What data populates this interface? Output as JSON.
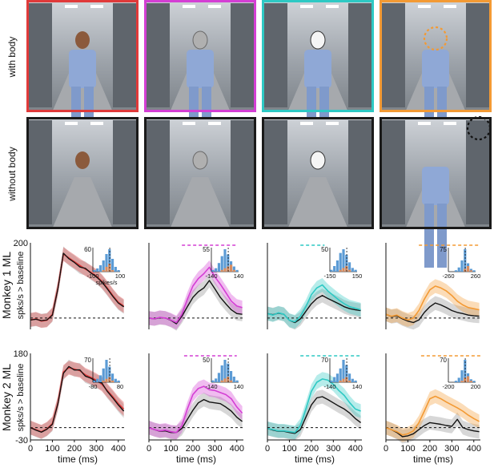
{
  "photo_panel": {
    "row_labels": [
      "with body",
      "without body"
    ],
    "frame_colors": [
      "#e03a3a",
      "#d43fd4",
      "#2ec9c4",
      "#f39a34"
    ],
    "bottom_frame_color": "#1a1a1a"
  },
  "colors": {
    "condition_1": "#e03a3a",
    "condition_2": "#d43fd4",
    "condition_3": "#2ec9c4",
    "condition_4": "#f39a34",
    "without_body": "#111111",
    "histogram_bars": "#5b9bd5",
    "histogram_highlight": "#d98c5f"
  },
  "row_titles": [
    "Monkey 1 ML",
    "Monkey 2 ML"
  ],
  "ylabel": "spks/s > baseline",
  "xlabel": "time (ms)",
  "x_ticks": [
    "0",
    "100",
    "200",
    "300",
    "400"
  ],
  "inset_unit": "spikes/s",
  "chart_data": [
    {
      "type": "line",
      "row": 0,
      "col": 0,
      "color_key": "condition_1",
      "x": [
        0,
        25,
        50,
        75,
        100,
        125,
        150,
        175,
        200,
        225,
        250,
        275,
        300,
        325,
        350,
        375,
        400,
        425
      ],
      "ylim": [
        -30,
        200
      ],
      "xlim": [
        0,
        430
      ],
      "y_tick_labels": [
        "200"
      ],
      "series": [
        {
          "values": [
            -5,
            -2,
            -8,
            -6,
            10,
            80,
            170,
            160,
            150,
            140,
            130,
            122,
            112,
            98,
            80,
            60,
            42,
            32
          ]
        },
        {
          "values": [
            -5,
            -3,
            -7,
            -5,
            8,
            78,
            172,
            158,
            148,
            136,
            132,
            120,
            110,
            96,
            78,
            58,
            40,
            30
          ]
        }
      ],
      "significance_bar": null,
      "inset": {
        "ticks": [
          "-100",
          "100"
        ],
        "ymax_label": "60",
        "counts": [
          1,
          2,
          4,
          7,
          11,
          14,
          8,
          3,
          1
        ],
        "highlight": [
          0,
          0,
          0,
          1,
          3,
          5,
          1,
          0,
          0
        ]
      }
    },
    {
      "type": "line",
      "row": 0,
      "col": 1,
      "color_key": "condition_2",
      "x": [
        0,
        25,
        50,
        75,
        100,
        125,
        150,
        175,
        200,
        225,
        250,
        275,
        300,
        325,
        350,
        375,
        400,
        425
      ],
      "ylim": [
        -30,
        200
      ],
      "xlim": [
        0,
        430
      ],
      "y_tick_labels": [],
      "series": [
        {
          "values": [
            0,
            -2,
            2,
            0,
            -5,
            -12,
            10,
            50,
            85,
            105,
            118,
            135,
            110,
            90,
            68,
            45,
            32,
            28
          ]
        },
        {
          "values": [
            0,
            -2,
            1,
            0,
            -6,
            -15,
            5,
            30,
            55,
            70,
            80,
            100,
            78,
            55,
            38,
            22,
            12,
            10
          ]
        }
      ],
      "significance_bar": [
        150,
        400
      ],
      "inset": {
        "ticks": [
          "-140",
          "140"
        ],
        "ymax_label": "55",
        "counts": [
          1,
          2,
          5,
          9,
          13,
          10,
          6,
          3,
          1
        ],
        "highlight": [
          0,
          0,
          0,
          1,
          2,
          3,
          4,
          1,
          0
        ]
      }
    },
    {
      "type": "line",
      "row": 0,
      "col": 2,
      "color_key": "condition_3",
      "x": [
        0,
        25,
        50,
        75,
        100,
        125,
        150,
        175,
        200,
        225,
        250,
        275,
        300,
        325,
        350,
        375,
        400,
        425
      ],
      "ylim": [
        -30,
        200
      ],
      "xlim": [
        0,
        430
      ],
      "y_tick_labels": [],
      "series": [
        {
          "values": [
            12,
            8,
            14,
            10,
            -6,
            -10,
            5,
            30,
            62,
            80,
            88,
            72,
            60,
            48,
            38,
            30,
            26,
            22
          ]
        },
        {
          "values": [
            12,
            9,
            13,
            10,
            -6,
            -12,
            -2,
            18,
            38,
            52,
            60,
            52,
            45,
            38,
            30,
            25,
            22,
            20
          ]
        }
      ],
      "significance_bar": [
        150,
        260
      ],
      "inset": {
        "ticks": [
          "-150",
          "150"
        ],
        "ymax_label": "50",
        "counts": [
          1,
          3,
          6,
          10,
          12,
          9,
          5,
          2,
          1
        ],
        "highlight": [
          0,
          0,
          0,
          1,
          2,
          3,
          1,
          0,
          0
        ]
      }
    },
    {
      "type": "line",
      "row": 0,
      "col": 3,
      "color_key": "condition_4",
      "x": [
        0,
        25,
        50,
        75,
        100,
        125,
        150,
        175,
        200,
        225,
        250,
        275,
        300,
        325,
        350,
        375,
        400,
        425
      ],
      "ylim": [
        -30,
        200
      ],
      "xlim": [
        0,
        430
      ],
      "y_tick_labels": [],
      "series": [
        {
          "values": [
            10,
            5,
            8,
            0,
            -5,
            0,
            20,
            50,
            75,
            85,
            80,
            72,
            60,
            45,
            35,
            28,
            25,
            22
          ]
        },
        {
          "values": [
            10,
            4,
            6,
            -2,
            -8,
            -12,
            -5,
            15,
            30,
            40,
            35,
            28,
            20,
            15,
            12,
            8,
            6,
            5
          ]
        }
      ],
      "significance_bar": [
        150,
        430
      ],
      "inset": {
        "ticks": [
          "-260",
          "260"
        ],
        "ymax_label": "75",
        "counts": [
          0,
          0,
          1,
          3,
          8,
          16,
          6,
          2,
          1
        ],
        "highlight": [
          0,
          0,
          0,
          0,
          0,
          2,
          4,
          1,
          0
        ]
      }
    },
    {
      "type": "line",
      "row": 1,
      "col": 0,
      "color_key": "condition_1",
      "x": [
        0,
        25,
        50,
        75,
        100,
        125,
        150,
        175,
        200,
        225,
        250,
        275,
        300,
        325,
        350,
        375,
        400,
        425
      ],
      "ylim": [
        -30,
        180
      ],
      "xlim": [
        0,
        430
      ],
      "y_tick_labels": [
        "180",
        "-30"
      ],
      "series": [
        {
          "values": [
            0,
            -5,
            -10,
            -3,
            10,
            60,
            135,
            145,
            142,
            138,
            128,
            122,
            115,
            105,
            90,
            75,
            58,
            45
          ]
        },
        {
          "values": [
            0,
            -6,
            -11,
            -4,
            8,
            58,
            132,
            148,
            140,
            140,
            125,
            120,
            112,
            108,
            88,
            72,
            55,
            40
          ]
        }
      ],
      "significance_bar": null,
      "inset": {
        "ticks": [
          "-80",
          "80"
        ],
        "ymax_label": "70",
        "counts": [
          1,
          2,
          4,
          8,
          13,
          9,
          5,
          2,
          1
        ],
        "highlight": [
          0,
          0,
          0,
          1,
          2,
          3,
          1,
          0,
          0
        ]
      }
    },
    {
      "type": "line",
      "row": 1,
      "col": 1,
      "color_key": "condition_2",
      "x": [
        0,
        25,
        50,
        75,
        100,
        125,
        150,
        175,
        200,
        225,
        250,
        275,
        300,
        325,
        350,
        375,
        400,
        425
      ],
      "ylim": [
        -30,
        180
      ],
      "xlim": [
        0,
        430
      ],
      "y_tick_labels": [],
      "series": [
        {
          "values": [
            0,
            -5,
            -8,
            -6,
            -10,
            -12,
            5,
            45,
            80,
            95,
            100,
            92,
            90,
            85,
            80,
            70,
            50,
            35
          ]
        },
        {
          "values": [
            0,
            -5,
            -9,
            -8,
            -12,
            -12,
            -2,
            20,
            42,
            60,
            68,
            62,
            60,
            58,
            50,
            40,
            25,
            15
          ]
        }
      ],
      "significance_bar": [
        160,
        400
      ],
      "inset": {
        "ticks": [
          "-140",
          "140"
        ],
        "ymax_label": "50",
        "counts": [
          1,
          2,
          5,
          9,
          12,
          10,
          6,
          3,
          1
        ],
        "highlight": [
          0,
          0,
          0,
          1,
          2,
          3,
          1,
          0,
          0
        ]
      }
    },
    {
      "type": "line",
      "row": 1,
      "col": 2,
      "color_key": "condition_3",
      "x": [
        0,
        25,
        50,
        75,
        100,
        125,
        150,
        175,
        200,
        225,
        250,
        275,
        300,
        325,
        350,
        375,
        400,
        425
      ],
      "ylim": [
        -30,
        180
      ],
      "xlim": [
        0,
        430
      ],
      "y_tick_labels": [],
      "series": [
        {
          "values": [
            -2,
            -5,
            -8,
            -8,
            -10,
            -12,
            5,
            45,
            88,
            110,
            118,
            115,
            105,
            90,
            78,
            60,
            45,
            40
          ]
        },
        {
          "values": [
            -2,
            -6,
            -9,
            -9,
            -12,
            -14,
            -5,
            25,
            55,
            72,
            75,
            68,
            60,
            52,
            45,
            35,
            22,
            12
          ]
        }
      ],
      "significance_bar": [
        150,
        420
      ],
      "inset": {
        "ticks": [
          "-140",
          "140"
        ],
        "ymax_label": "70",
        "counts": [
          1,
          3,
          5,
          8,
          13,
          10,
          5,
          2,
          1
        ],
        "highlight": [
          0,
          0,
          0,
          1,
          2,
          3,
          1,
          0,
          0
        ]
      }
    },
    {
      "type": "line",
      "row": 1,
      "col": 3,
      "color_key": "condition_4",
      "x": [
        0,
        25,
        50,
        75,
        100,
        125,
        150,
        175,
        200,
        225,
        250,
        275,
        300,
        325,
        350,
        375,
        400,
        425
      ],
      "ylim": [
        -30,
        180
      ],
      "xlim": [
        0,
        430
      ],
      "y_tick_labels": [],
      "series": [
        {
          "values": [
            0,
            -5,
            -10,
            -18,
            -15,
            -8,
            12,
            40,
            70,
            76,
            70,
            62,
            55,
            48,
            40,
            30,
            22,
            15
          ]
        },
        {
          "values": [
            0,
            -5,
            -12,
            -22,
            -20,
            -15,
            -5,
            5,
            12,
            10,
            8,
            5,
            3,
            20,
            0,
            -5,
            -8,
            -10
          ]
        }
      ],
      "significance_bar": [
        160,
        430
      ],
      "inset": {
        "ticks": [
          "-200",
          "200"
        ],
        "ymax_label": "70",
        "counts": [
          0,
          0,
          1,
          3,
          8,
          15,
          6,
          2,
          1
        ],
        "highlight": [
          0,
          0,
          0,
          0,
          1,
          3,
          4,
          1,
          0
        ]
      }
    }
  ]
}
